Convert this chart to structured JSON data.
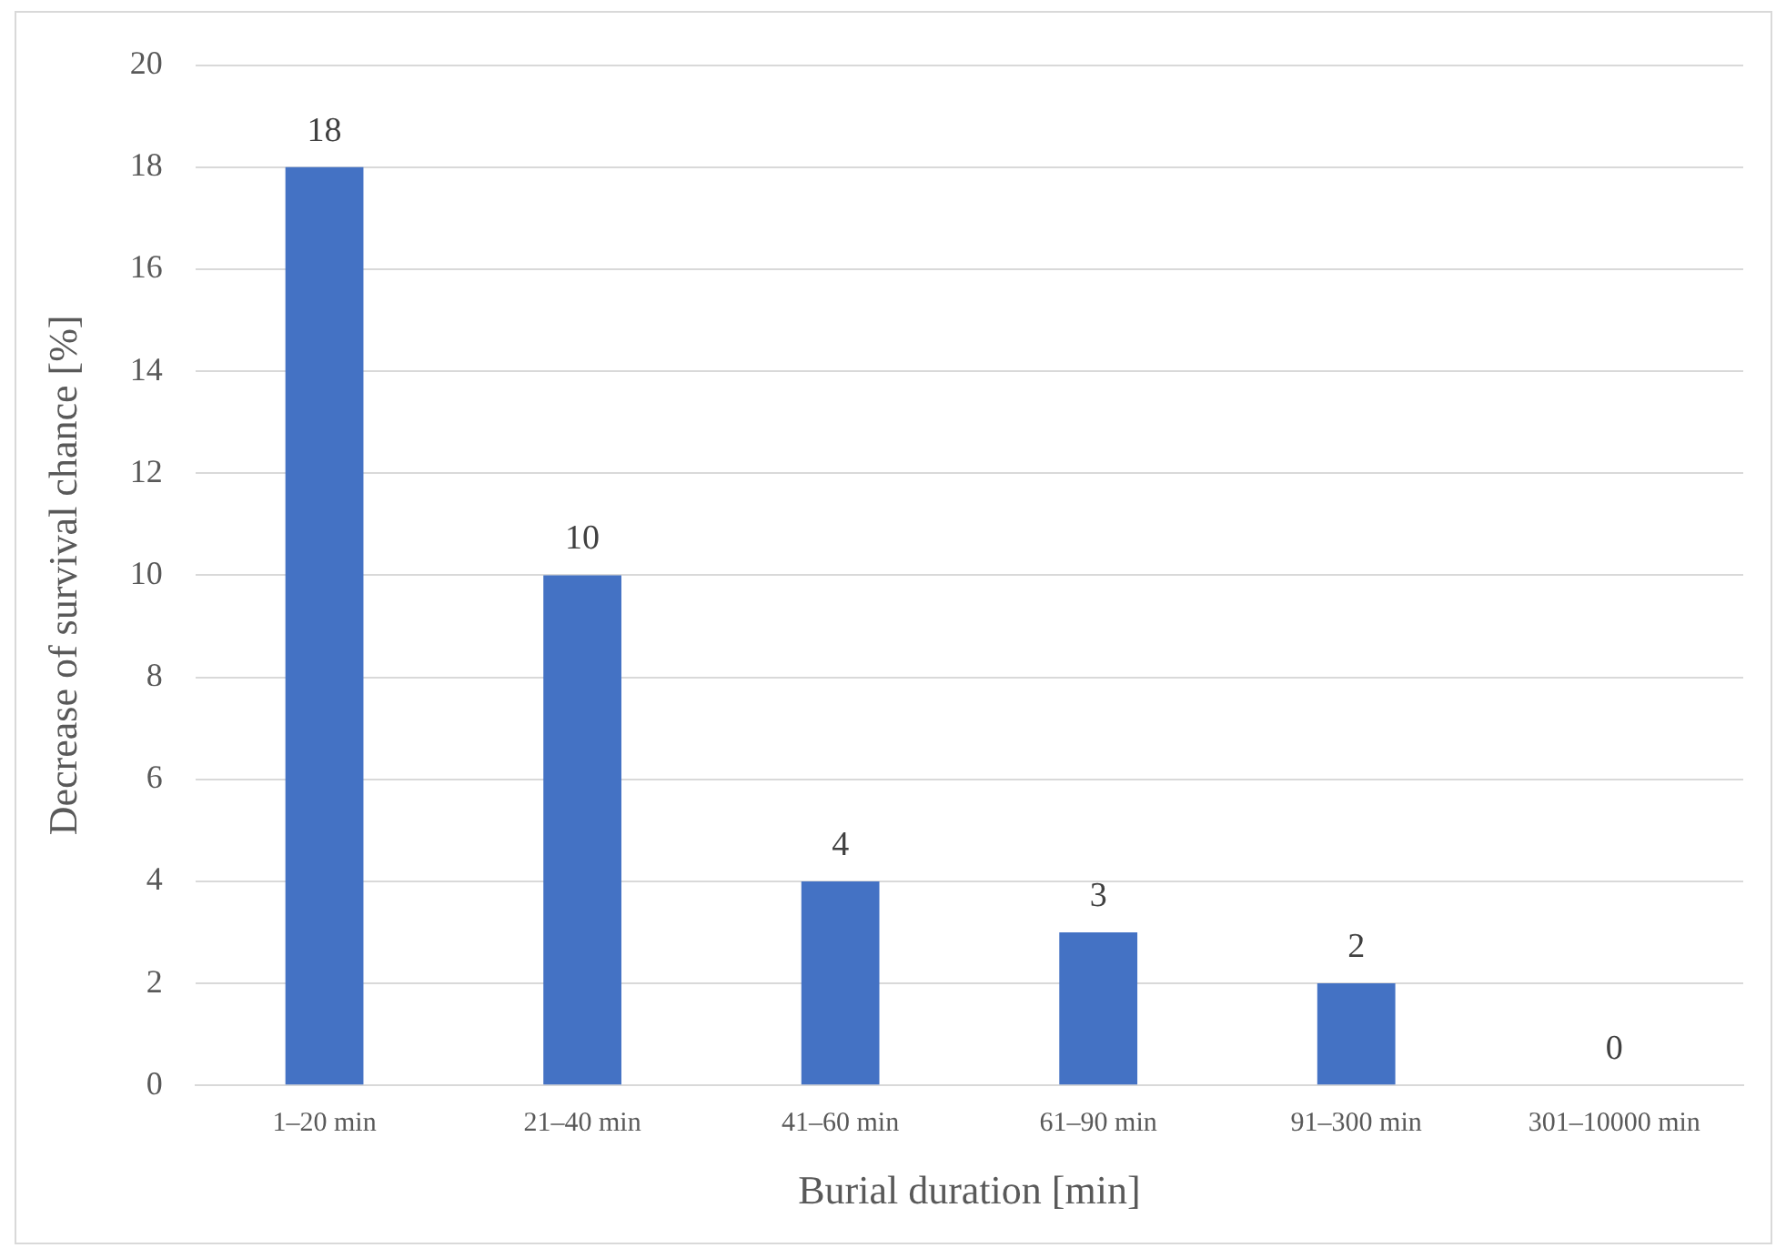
{
  "chart_data": {
    "type": "bar",
    "xlabel": "Burial duration [min]",
    "ylabel": "Decrease of survival chance [%]",
    "categories": [
      "1–20 min",
      "21–40 min",
      "41–60 min",
      "61–90 min",
      "91–300 min",
      "301–10000 min"
    ],
    "values": [
      18,
      10,
      4,
      3,
      2,
      0
    ],
    "color": "#4472c4",
    "ylim": [
      0,
      20
    ],
    "yticks": [
      0,
      2,
      4,
      6,
      8,
      10,
      12,
      14,
      16,
      18,
      20
    ],
    "grid": "y",
    "data_labels": true,
    "legend": false
  }
}
